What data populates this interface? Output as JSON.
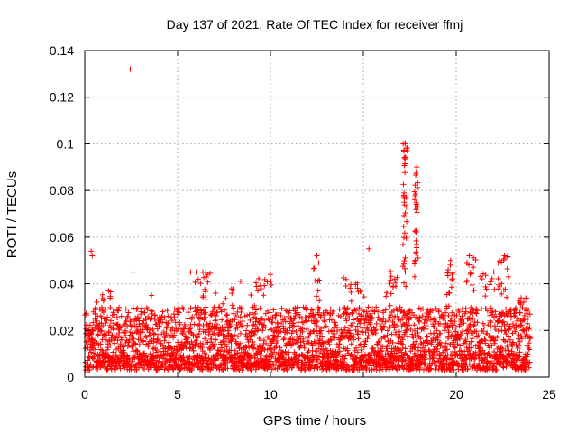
{
  "chart_data": {
    "type": "scatter",
    "title": "Day 137 of 2021, Rate Of TEC Index for receiver ffmj",
    "xlabel": "GPS time / hours",
    "ylabel": "ROTI / TECUs",
    "xlim": [
      0,
      25
    ],
    "ylim": [
      0,
      0.14
    ],
    "xticks": [
      0,
      5,
      10,
      15,
      20,
      25
    ],
    "xtick_labels": [
      "0",
      "5",
      "10",
      "15",
      "20",
      "25"
    ],
    "yticks": [
      0,
      0.02,
      0.04,
      0.06,
      0.08,
      0.1,
      0.12,
      0.14
    ],
    "ytick_labels": [
      "0",
      "0.02",
      "0.04",
      "0.06",
      "0.08",
      "0.1",
      "0.12",
      "0.14"
    ],
    "grid": true,
    "marker": "+",
    "color": "#ff0000",
    "x_range_hours": [
      0,
      24
    ],
    "base_band": [
      0.003,
      0.03
    ],
    "notable_points": [
      {
        "x": 2.45,
        "y": 0.132
      },
      {
        "x": 0.35,
        "y": 0.054
      },
      {
        "x": 0.4,
        "y": 0.052
      },
      {
        "x": 2.6,
        "y": 0.045
      },
      {
        "x": 3.6,
        "y": 0.035
      },
      {
        "x": 5.7,
        "y": 0.045
      },
      {
        "x": 6.0,
        "y": 0.045
      },
      {
        "x": 6.6,
        "y": 0.044
      },
      {
        "x": 8.4,
        "y": 0.041
      },
      {
        "x": 10.0,
        "y": 0.044
      },
      {
        "x": 12.5,
        "y": 0.052
      },
      {
        "x": 15.3,
        "y": 0.055
      },
      {
        "x": 19.7,
        "y": 0.05
      },
      {
        "x": 20.7,
        "y": 0.052
      },
      {
        "x": 22.6,
        "y": 0.052
      }
    ],
    "spikes": [
      {
        "x_center": 17.25,
        "x_spread": 0.12,
        "y_min": 0.035,
        "y_max": 0.101,
        "count": 40
      },
      {
        "x_center": 17.85,
        "x_spread": 0.1,
        "y_min": 0.035,
        "y_max": 0.091,
        "count": 30
      },
      {
        "x_center": 19.6,
        "x_spread": 0.25,
        "y_min": 0.03,
        "y_max": 0.049,
        "count": 14
      },
      {
        "x_center": 20.8,
        "x_spread": 0.25,
        "y_min": 0.03,
        "y_max": 0.052,
        "count": 14
      },
      {
        "x_center": 22.5,
        "x_spread": 0.4,
        "y_min": 0.03,
        "y_max": 0.052,
        "count": 18
      },
      {
        "x_center": 21.7,
        "x_spread": 0.4,
        "y_min": 0.03,
        "y_max": 0.046,
        "count": 12
      },
      {
        "x_center": 12.5,
        "x_spread": 0.2,
        "y_min": 0.03,
        "y_max": 0.05,
        "count": 10
      },
      {
        "x_center": 14.5,
        "x_spread": 0.6,
        "y_min": 0.03,
        "y_max": 0.043,
        "count": 14
      },
      {
        "x_center": 16.5,
        "x_spread": 0.4,
        "y_min": 0.03,
        "y_max": 0.046,
        "count": 14
      },
      {
        "x_center": 9.5,
        "x_spread": 0.6,
        "y_min": 0.03,
        "y_max": 0.044,
        "count": 14
      },
      {
        "x_center": 1.0,
        "x_spread": 0.4,
        "y_min": 0.028,
        "y_max": 0.037,
        "count": 10
      },
      {
        "x_center": 6.3,
        "x_spread": 0.5,
        "y_min": 0.03,
        "y_max": 0.045,
        "count": 14
      },
      {
        "x_center": 7.5,
        "x_spread": 0.6,
        "y_min": 0.028,
        "y_max": 0.038,
        "count": 10
      },
      {
        "x_center": 23.6,
        "x_spread": 0.3,
        "y_min": 0.028,
        "y_max": 0.034,
        "count": 8
      }
    ]
  }
}
